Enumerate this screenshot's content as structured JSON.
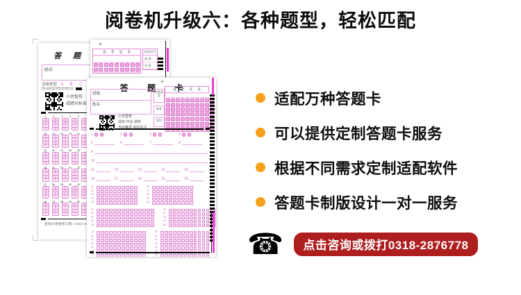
{
  "page": {
    "title": "阅卷机升级六：各种题型，轻松匹配"
  },
  "features": {
    "bullet_color": "#F6A01E",
    "items": [
      "适配万种答题卡",
      "可以提供定制答题卡服务",
      "根据不同需求定制适配软件",
      "答题卡制版设计一对一服务"
    ]
  },
  "contact": {
    "phone_icon": "telephone",
    "banner_text": "点击咨询或拨打0318-2876778",
    "banner_color": "#AF1E1E",
    "text_color": "#ffffff"
  },
  "sheets": {
    "ink_color": "#D45FC6",
    "strip_color": "#E83FD6",
    "left_sheet": {
      "title": "答 题 卡",
      "name_label": "姓名:",
      "paper_type_label": "试卷类型",
      "paper_type_options": "A B C D",
      "pencil_note": "用2B铅笔涂黑选项信号",
      "qr_caption": [
        "小优智校",
        "成绩分析自动推送"
      ],
      "footer_note": "咨询小优智校订购: 0318-28",
      "answer_letters": [
        "A",
        "B",
        "C",
        "D"
      ],
      "block_count": 6,
      "block_groups": [
        5,
        4
      ]
    },
    "fragment_sheet": {
      "plus_mark": "+",
      "exam_no_label": "准 考 证 号",
      "subject_label": "科目代号",
      "subject_rows": [
        "成 绩",
        "学 科"
      ],
      "grid_cols": 9,
      "grid_rows": 2,
      "ladder_bars": 4
    },
    "right_sheet": {
      "plus_mark": "+",
      "title": "答 题 卡",
      "class_label": "班级:",
      "name_label": "姓名:",
      "side_boxes": [
        "试卷类型",
        "缺考",
        "学科"
      ],
      "exam_no_label": "准 考 证 号",
      "grid_cols": 10,
      "grid_rows": 7,
      "qr_caption": [
        "小优智校",
        "成绩 作业 通知",
        "自动推送 实时关注"
      ],
      "tf_items": [
        "1",
        "2",
        "3",
        "4"
      ],
      "blank_items_row1": [
        "5",
        "6",
        "7",
        "8"
      ],
      "long_items": [
        "9",
        "10"
      ],
      "blank_items_row2": [
        "11",
        "12",
        "13",
        "14",
        "15"
      ],
      "blank_items_row3": [
        "16",
        "17",
        "18",
        "19",
        "20"
      ],
      "bubble_blocks": [
        {
          "rows": 5,
          "groups": 2,
          "cols": 10,
          "start": 21
        },
        {
          "rows": 5,
          "groups": 2,
          "cols": 14,
          "start": 31
        },
        {
          "rows": 9,
          "groups": 2,
          "cols": 12,
          "start": 41
        }
      ],
      "group_row": {
        "rows": 2,
        "groups": 5,
        "cols": 4,
        "start": 59
      },
      "ladder_bars": 42
    }
  }
}
